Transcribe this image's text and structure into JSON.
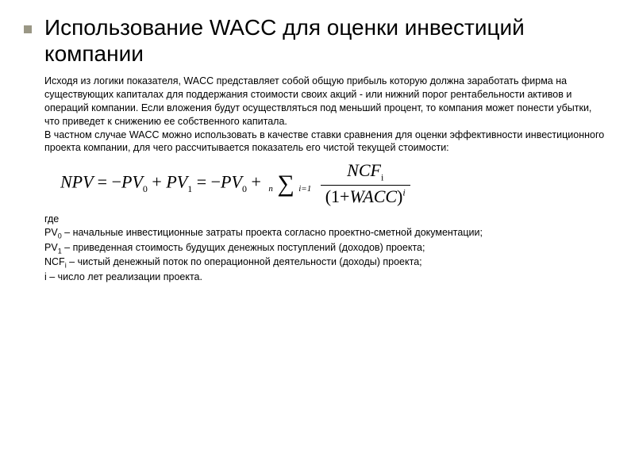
{
  "title": "Использование WACC для оценки инвестиций компании",
  "paragraph1": "Исходя из логики показателя, WACC представляет собой общую прибыль которую должна заработать фирма на существующих капиталах для поддержания стоимости своих акций - или нижний порог рентабельности активов и операций компании. Если вложения будут осуществляться под меньший процент, то компания может понести убытки, что приведет к снижению ее собственного капитала.",
  "paragraph2": "В частном случае WACC можно использовать в качестве ставки сравнения для оценки эффективности инвестиционного проекта компании, для чего рассчитывается показатель его чистой текущей стоимости:",
  "formula": {
    "lhs": "NPV",
    "eq": "=",
    "neg": "−",
    "pv": "PV",
    "sub0": "0",
    "plus": "+",
    "sub1": "1",
    "sum_upper": "n",
    "sum_lower": "i=1",
    "num_var": "NCF",
    "num_sub": "i",
    "den_open": "(1+",
    "den_var": "WACC",
    "den_close": ")",
    "den_exp": "i"
  },
  "defs_intro": "где",
  "def_pv0": "PV",
  "def_pv0_sub": "0",
  "def_pv0_text": " – начальные инвестиционные затраты проекта согласно проектно-сметной документации;",
  "def_pv1": "PV",
  "def_pv1_sub": "1",
  "def_pv1_text": " – приведенная стоимость будущих денежных поступлений (доходов) проекта;",
  "def_ncf": "NCF",
  "def_ncf_sub": "i",
  "def_ncf_text": " – чистый денежный поток по операционной деятельности (доходы) проекта;",
  "def_i": "i – число лет реализации проекта.",
  "colors": {
    "text": "#000000",
    "background": "#ffffff",
    "bullet": "#9a9785"
  },
  "fonts": {
    "body_family": "Arial",
    "body_size_pt": 10,
    "title_size_pt": 22,
    "formula_family": "Times New Roman",
    "formula_size_pt": 18
  }
}
